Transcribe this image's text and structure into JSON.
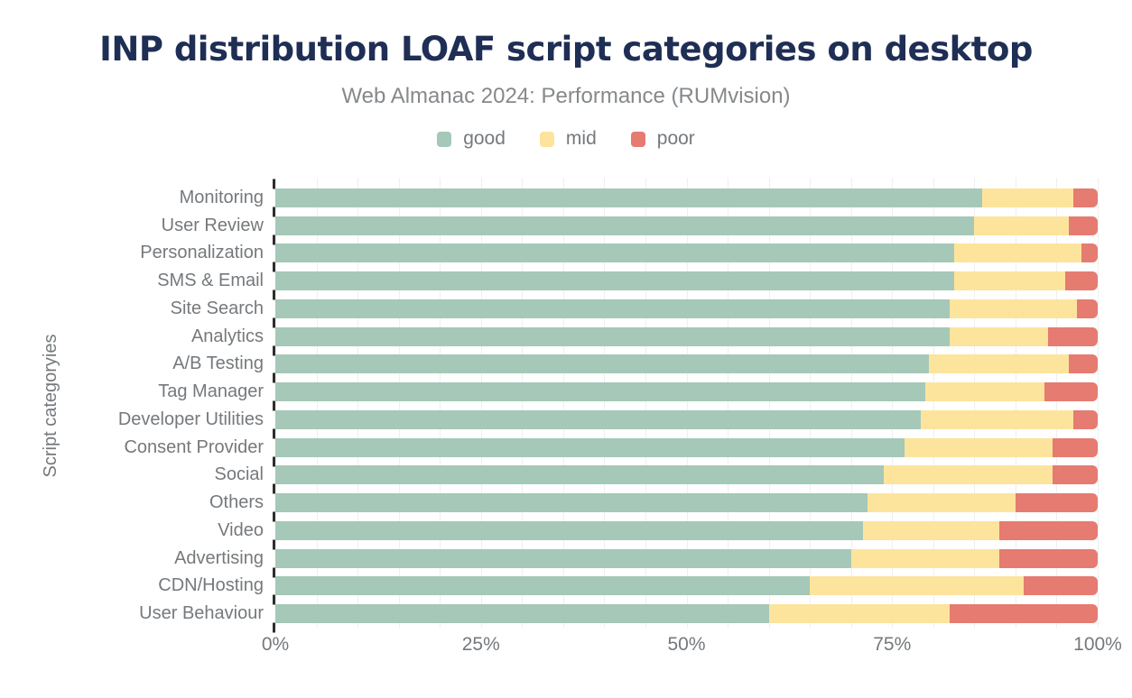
{
  "chart_data": {
    "type": "bar",
    "orientation": "horizontal",
    "stacked": true,
    "title": "INP distribution LOAF script categories on desktop",
    "subtitle": "Web Almanac 2024: Performance (RUMvision)",
    "xlabel": "",
    "ylabel": "Script categoryies",
    "legend_position": "top",
    "grid": true,
    "x_axis": {
      "range": [
        0,
        100
      ],
      "unit": "%",
      "tick_labels": [
        "0%",
        "25%",
        "50%",
        "75%",
        "100%"
      ],
      "tick_values": [
        0,
        25,
        50,
        75,
        100
      ],
      "minor_gridline_step": 5
    },
    "categories": [
      "Monitoring",
      "User Review",
      "Personalization",
      "SMS & Email",
      "Site Search",
      "Analytics",
      "A/B Testing",
      "Tag Manager",
      "Developer Utilities",
      "Consent Provider",
      "Social",
      "Others",
      "Video",
      "Advertising",
      "CDN/Hosting",
      "User Behaviour"
    ],
    "series": [
      {
        "name": "good",
        "color": "#a5c8b8",
        "values": [
          86,
          85,
          82.5,
          82.5,
          82,
          82,
          79.5,
          79,
          78.5,
          76.5,
          74,
          72,
          71.5,
          70,
          65,
          60
        ]
      },
      {
        "name": "mid",
        "color": "#fde49c",
        "values": [
          11,
          11.5,
          15.5,
          13.5,
          15.5,
          12,
          17,
          14.5,
          18.5,
          18,
          20.5,
          18,
          16.5,
          18,
          26,
          22
        ]
      },
      {
        "name": "poor",
        "color": "#e67b71",
        "values": [
          3,
          3.5,
          2,
          4,
          2.5,
          6,
          3.5,
          6.5,
          3,
          5.5,
          5.5,
          10,
          12,
          12,
          9,
          18
        ]
      }
    ],
    "colors": {
      "title": "#1f2e55",
      "subtitle": "#85898c",
      "axis_text": "#75797c",
      "gridline": "#efefef"
    }
  }
}
